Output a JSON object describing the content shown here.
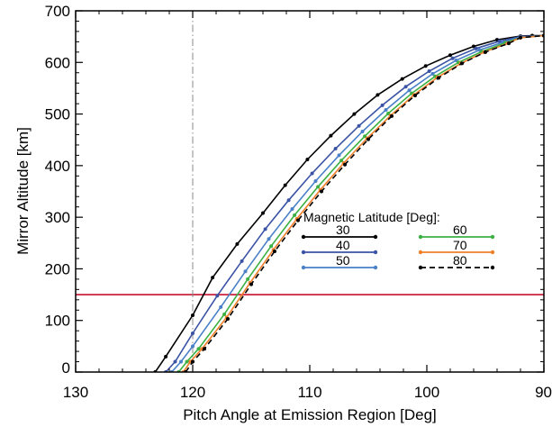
{
  "chart_data": {
    "type": "line",
    "title": "",
    "xlabel": "Pitch Angle at Emission Region [Deg]",
    "ylabel": "Mirror Altitude [km]",
    "xlim": [
      130,
      90
    ],
    "ylim": [
      0,
      700
    ],
    "x_reversed": true,
    "xticks": [
      130,
      120,
      110,
      100,
      90
    ],
    "yticks": [
      0,
      100,
      200,
      300,
      400,
      500,
      600,
      700
    ],
    "grid": false,
    "legend_title": "Magnetic Latitude [Deg]:",
    "legend_position": "center-right",
    "reference_lines": [
      {
        "orientation": "horizontal",
        "value": 150,
        "color": "#c8102e",
        "style": "solid"
      },
      {
        "orientation": "vertical",
        "value": 120,
        "color": "#888888",
        "style": "dash-dot"
      }
    ],
    "series": [
      {
        "name": "30",
        "color": "#000000",
        "style": "solid",
        "x": [
          123.2,
          122.3,
          120.0,
          118.3,
          116.2,
          114.0,
          112.1,
          110.2,
          108.2,
          106.2,
          104.2,
          102.1,
          100.1,
          98.0,
          96.0,
          94.0,
          92.0,
          91.0,
          90.0
        ],
        "y": [
          0,
          30,
          110,
          183,
          248,
          308,
          362,
          412,
          458,
          500,
          537,
          568,
          593,
          614,
          631,
          644,
          651,
          652,
          652
        ]
      },
      {
        "name": "40",
        "color": "#3a53a4",
        "style": "solid",
        "x": [
          122.3,
          121.5,
          120.0,
          117.9,
          115.8,
          113.8,
          111.8,
          109.8,
          107.8,
          105.8,
          103.8,
          101.8,
          99.8,
          97.8,
          95.8,
          93.8,
          92.0,
          90.0
        ],
        "y": [
          0,
          20,
          75,
          148,
          215,
          277,
          333,
          385,
          433,
          477,
          517,
          553,
          583,
          608,
          627,
          641,
          650,
          652
        ]
      },
      {
        "name": "50",
        "color": "#4a80c8",
        "style": "solid",
        "x": [
          121.8,
          121.0,
          120.0,
          117.6,
          115.5,
          113.5,
          111.5,
          109.5,
          107.5,
          105.5,
          103.5,
          101.5,
          99.5,
          97.5,
          95.5,
          93.5,
          92.0,
          90.0
        ],
        "y": [
          0,
          20,
          50,
          126,
          195,
          258,
          316,
          370,
          420,
          466,
          508,
          546,
          578,
          604,
          624,
          639,
          649,
          652
        ]
      },
      {
        "name": "60",
        "color": "#3cb043",
        "style": "solid",
        "x": [
          121.2,
          120.5,
          119.5,
          117.3,
          115.3,
          113.3,
          111.3,
          109.3,
          107.3,
          105.3,
          103.3,
          101.3,
          99.3,
          97.3,
          95.3,
          93.3,
          92.0,
          90.0
        ],
        "y": [
          0,
          20,
          45,
          112,
          180,
          244,
          304,
          359,
          410,
          457,
          501,
          540,
          573,
          600,
          621,
          638,
          648,
          652
        ]
      },
      {
        "name": "70",
        "color": "#f07f2a",
        "style": "solid",
        "x": [
          120.8,
          120.2,
          119.2,
          117.1,
          115.1,
          113.1,
          111.1,
          109.1,
          107.1,
          105.1,
          103.1,
          101.1,
          99.1,
          97.1,
          95.1,
          93.1,
          92.0,
          90.0
        ],
        "y": [
          0,
          20,
          45,
          106,
          173,
          237,
          297,
          353,
          405,
          453,
          497,
          537,
          571,
          598,
          620,
          637,
          648,
          652
        ]
      },
      {
        "name": "80",
        "color": "#000000",
        "style": "dashed",
        "x": [
          120.6,
          120.0,
          119.0,
          117.0,
          115.0,
          113.0,
          111.0,
          109.0,
          107.0,
          105.0,
          103.0,
          101.0,
          99.0,
          97.0,
          95.0,
          93.0,
          92.0,
          90.0
        ],
        "y": [
          0,
          20,
          45,
          103,
          170,
          234,
          294,
          350,
          402,
          451,
          496,
          536,
          570,
          598,
          620,
          637,
          648,
          652
        ]
      }
    ]
  }
}
